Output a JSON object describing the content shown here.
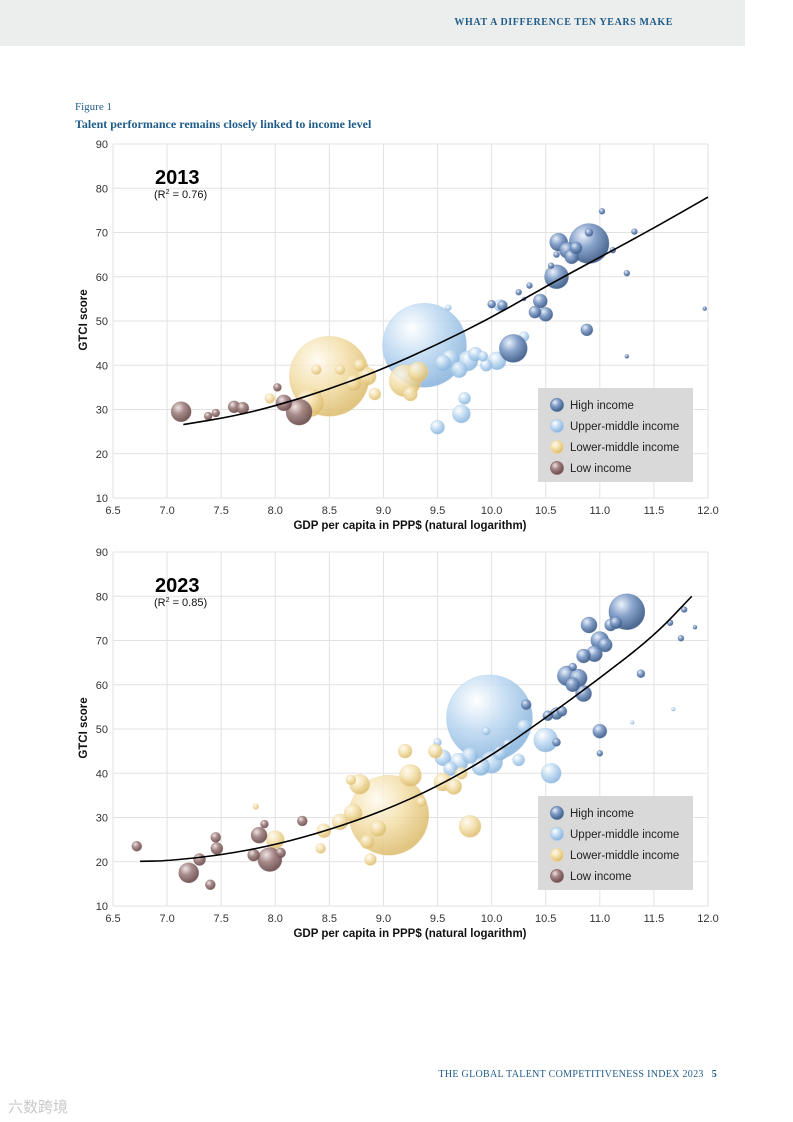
{
  "header": {
    "running_title": "WHAT A DIFFERENCE TEN YEARS MAKE"
  },
  "figure": {
    "label": "Figure 1",
    "title": "Talent performance remains closely linked to income level"
  },
  "footer": {
    "publication": "THE GLOBAL TALENT COMPETITIVENESS INDEX 2023",
    "page_number": "5"
  },
  "watermark": {
    "text": "六数跨境"
  },
  "colors": {
    "high": "#5b7aa8",
    "upper_middle": "#a9cbea",
    "lower_middle": "#efd8a0",
    "low": "#8d6a6a",
    "fit_line": "#000000",
    "grid": "#e2e2e2",
    "legend_bg": "#d9d9d9"
  },
  "chart_data": [
    {
      "type": "scatter",
      "subtype": "bubble",
      "title": "2013",
      "annotation": {
        "r2_prefix": "(R",
        "r2_sup": "2",
        "r2_suffix": " = 0.76)"
      },
      "xlabel": "GDP per capita in PPP$ (natural logarithm)",
      "ylabel": "GTCI score",
      "xlim": [
        6.5,
        12.0
      ],
      "ylim": [
        10,
        90
      ],
      "xticks": [
        "6.5",
        "7.0",
        "7.5",
        "8.0",
        "8.5",
        "9.0",
        "9.5",
        "10.0",
        "10.5",
        "11.0",
        "11.5",
        "12.0"
      ],
      "yticks": [
        "10",
        "20",
        "30",
        "40",
        "50",
        "60",
        "70",
        "80",
        "90"
      ],
      "legend": [
        "High income",
        "Upper-middle income",
        "Lower-middle income",
        "Low income"
      ],
      "legend_position": "bottom-right",
      "fit_curve": [
        [
          7.15,
          26.6
        ],
        [
          7.6,
          28.4
        ],
        [
          8.0,
          30.8
        ],
        [
          8.5,
          34.6
        ],
        [
          9.0,
          39.2
        ],
        [
          9.5,
          44.7
        ],
        [
          10.0,
          50.8
        ],
        [
          10.5,
          57.8
        ],
        [
          11.0,
          64.4
        ],
        [
          11.5,
          71.0
        ],
        [
          12.0,
          78.0
        ]
      ],
      "series": [
        {
          "name": "Low income",
          "group": "low",
          "points": [
            {
              "x": 7.13,
              "y": 29.5,
              "s": 10
            },
            {
              "x": 7.38,
              "y": 28.5,
              "s": 4
            },
            {
              "x": 7.45,
              "y": 29.2,
              "s": 4
            },
            {
              "x": 7.62,
              "y": 30.6,
              "s": 6
            },
            {
              "x": 7.7,
              "y": 30.3,
              "s": 6
            },
            {
              "x": 8.02,
              "y": 35.0,
              "s": 4
            },
            {
              "x": 8.08,
              "y": 31.5,
              "s": 8
            },
            {
              "x": 8.22,
              "y": 29.4,
              "s": 13
            }
          ]
        },
        {
          "name": "Lower-middle income",
          "group": "lower_middle",
          "points": [
            {
              "x": 8.5,
              "y": 37.5,
              "s": 40
            },
            {
              "x": 8.32,
              "y": 31.5,
              "s": 14
            },
            {
              "x": 8.72,
              "y": 36.0,
              "s": 8
            },
            {
              "x": 8.78,
              "y": 40.0,
              "s": 6
            },
            {
              "x": 8.85,
              "y": 37.5,
              "s": 9
            },
            {
              "x": 8.92,
              "y": 33.5,
              "s": 6
            },
            {
              "x": 9.2,
              "y": 36.5,
              "s": 16
            },
            {
              "x": 9.32,
              "y": 38.5,
              "s": 10
            },
            {
              "x": 9.25,
              "y": 33.5,
              "s": 7
            },
            {
              "x": 8.6,
              "y": 39.0,
              "s": 5
            },
            {
              "x": 7.95,
              "y": 32.5,
              "s": 5
            },
            {
              "x": 8.38,
              "y": 39.0,
              "s": 5
            }
          ]
        },
        {
          "name": "Upper-middle income",
          "group": "upper_middle",
          "points": [
            {
              "x": 9.38,
              "y": 44.5,
              "s": 42
            },
            {
              "x": 9.5,
              "y": 26.0,
              "s": 7
            },
            {
              "x": 9.72,
              "y": 29.0,
              "s": 9
            },
            {
              "x": 9.75,
              "y": 32.5,
              "s": 6
            },
            {
              "x": 9.55,
              "y": 40.5,
              "s": 8
            },
            {
              "x": 9.62,
              "y": 41.5,
              "s": 9
            },
            {
              "x": 9.7,
              "y": 39.0,
              "s": 8
            },
            {
              "x": 9.78,
              "y": 41.0,
              "s": 10
            },
            {
              "x": 9.85,
              "y": 42.5,
              "s": 7
            },
            {
              "x": 9.95,
              "y": 40.0,
              "s": 6
            },
            {
              "x": 10.05,
              "y": 41.0,
              "s": 9
            },
            {
              "x": 9.92,
              "y": 42.0,
              "s": 5
            },
            {
              "x": 10.08,
              "y": 53.5,
              "s": 6
            },
            {
              "x": 9.6,
              "y": 53.0,
              "s": 3
            },
            {
              "x": 10.62,
              "y": 31.5,
              "s": 7
            },
            {
              "x": 10.3,
              "y": 46.5,
              "s": 5
            }
          ]
        },
        {
          "name": "High income",
          "group": "high",
          "points": [
            {
              "x": 10.9,
              "y": 67.5,
              "s": 20
            },
            {
              "x": 10.62,
              "y": 67.8,
              "s": 9
            },
            {
              "x": 10.7,
              "y": 66.0,
              "s": 8
            },
            {
              "x": 10.74,
              "y": 64.5,
              "s": 7
            },
            {
              "x": 10.78,
              "y": 66.5,
              "s": 6
            },
            {
              "x": 10.6,
              "y": 60.0,
              "s": 12
            },
            {
              "x": 10.2,
              "y": 43.8,
              "s": 14
            },
            {
              "x": 10.45,
              "y": 54.5,
              "s": 7
            },
            {
              "x": 10.5,
              "y": 51.5,
              "s": 7
            },
            {
              "x": 10.4,
              "y": 52.0,
              "s": 6
            },
            {
              "x": 10.1,
              "y": 53.5,
              "s": 5
            },
            {
              "x": 10.0,
              "y": 53.8,
              "s": 4
            },
            {
              "x": 10.88,
              "y": 48.0,
              "s": 6
            },
            {
              "x": 11.02,
              "y": 74.8,
              "s": 3
            },
            {
              "x": 11.32,
              "y": 70.2,
              "s": 3
            },
            {
              "x": 11.25,
              "y": 60.8,
              "s": 3
            },
            {
              "x": 11.25,
              "y": 42.0,
              "s": 2
            },
            {
              "x": 11.97,
              "y": 52.8,
              "s": 2
            },
            {
              "x": 11.12,
              "y": 66.0,
              "s": 3
            },
            {
              "x": 10.6,
              "y": 65.0,
              "s": 3
            },
            {
              "x": 10.35,
              "y": 58.0,
              "s": 3
            },
            {
              "x": 10.9,
              "y": 70.0,
              "s": 4
            },
            {
              "x": 10.55,
              "y": 62.5,
              "s": 3
            },
            {
              "x": 10.25,
              "y": 56.5,
              "s": 3
            },
            {
              "x": 10.3,
              "y": 55.0,
              "s": 2
            }
          ]
        }
      ]
    },
    {
      "type": "scatter",
      "subtype": "bubble",
      "title": "2023",
      "annotation": {
        "r2_prefix": "(R",
        "r2_sup": "2",
        "r2_suffix": " = 0.85)"
      },
      "xlabel": "GDP per capita in PPP$ (natural logarithm)",
      "ylabel": "GTCI score",
      "xlim": [
        6.5,
        12.0
      ],
      "ylim": [
        10,
        90
      ],
      "xticks": [
        "6.5",
        "7.0",
        "7.5",
        "8.0",
        "8.5",
        "9.0",
        "9.5",
        "10.0",
        "10.5",
        "11.0",
        "11.5",
        "12.0"
      ],
      "yticks": [
        "10",
        "20",
        "30",
        "40",
        "50",
        "60",
        "70",
        "80",
        "90"
      ],
      "legend": [
        "High income",
        "Upper-middle income",
        "Lower-middle income",
        "Low income"
      ],
      "legend_position": "bottom-right",
      "fit_curve": [
        [
          6.75,
          20.1
        ],
        [
          7.0,
          20.2
        ],
        [
          7.5,
          21.5
        ],
        [
          8.0,
          23.8
        ],
        [
          8.5,
          27.2
        ],
        [
          9.0,
          31.5
        ],
        [
          9.5,
          37.0
        ],
        [
          10.0,
          44.0
        ],
        [
          10.5,
          52.5
        ],
        [
          11.0,
          61.5
        ],
        [
          11.5,
          71.0
        ],
        [
          11.85,
          80.0
        ]
      ],
      "series": [
        {
          "name": "Low income",
          "group": "low",
          "points": [
            {
              "x": 6.72,
              "y": 23.5,
              "s": 5
            },
            {
              "x": 7.2,
              "y": 17.5,
              "s": 10
            },
            {
              "x": 7.3,
              "y": 20.5,
              "s": 6
            },
            {
              "x": 7.4,
              "y": 14.8,
              "s": 5
            },
            {
              "x": 7.45,
              "y": 25.5,
              "s": 5
            },
            {
              "x": 7.46,
              "y": 23.0,
              "s": 6
            },
            {
              "x": 7.8,
              "y": 21.5,
              "s": 6
            },
            {
              "x": 7.85,
              "y": 26.0,
              "s": 8
            },
            {
              "x": 7.9,
              "y": 28.5,
              "s": 4
            },
            {
              "x": 7.95,
              "y": 20.5,
              "s": 12
            },
            {
              "x": 8.05,
              "y": 22.0,
              "s": 5
            },
            {
              "x": 8.25,
              "y": 29.2,
              "s": 5
            }
          ]
        },
        {
          "name": "Lower-middle income",
          "group": "lower_middle",
          "points": [
            {
              "x": 9.05,
              "y": 30.5,
              "s": 40
            },
            {
              "x": 8.0,
              "y": 25.0,
              "s": 9
            },
            {
              "x": 7.82,
              "y": 32.5,
              "s": 3
            },
            {
              "x": 8.45,
              "y": 27.0,
              "s": 7
            },
            {
              "x": 8.6,
              "y": 29.0,
              "s": 8
            },
            {
              "x": 8.72,
              "y": 31.0,
              "s": 9
            },
            {
              "x": 8.78,
              "y": 37.5,
              "s": 10
            },
            {
              "x": 8.85,
              "y": 24.5,
              "s": 7
            },
            {
              "x": 8.95,
              "y": 27.5,
              "s": 8
            },
            {
              "x": 8.88,
              "y": 20.5,
              "s": 6
            },
            {
              "x": 9.2,
              "y": 45.0,
              "s": 7
            },
            {
              "x": 9.25,
              "y": 39.5,
              "s": 11
            },
            {
              "x": 9.48,
              "y": 45.0,
              "s": 7
            },
            {
              "x": 9.55,
              "y": 38.0,
              "s": 9
            },
            {
              "x": 9.65,
              "y": 37.0,
              "s": 8
            },
            {
              "x": 9.8,
              "y": 28.0,
              "s": 11
            },
            {
              "x": 9.72,
              "y": 40.0,
              "s": 6
            },
            {
              "x": 8.42,
              "y": 23.0,
              "s": 5
            },
            {
              "x": 9.35,
              "y": 33.5,
              "s": 5
            },
            {
              "x": 8.7,
              "y": 38.5,
              "s": 5
            }
          ]
        },
        {
          "name": "Upper-middle income",
          "group": "upper_middle",
          "points": [
            {
              "x": 9.98,
              "y": 52.5,
              "s": 43
            },
            {
              "x": 9.55,
              "y": 43.5,
              "s": 8
            },
            {
              "x": 9.62,
              "y": 41.0,
              "s": 7
            },
            {
              "x": 9.7,
              "y": 42.5,
              "s": 9
            },
            {
              "x": 9.8,
              "y": 44.0,
              "s": 8
            },
            {
              "x": 9.9,
              "y": 41.5,
              "s": 9
            },
            {
              "x": 10.0,
              "y": 42.5,
              "s": 11
            },
            {
              "x": 10.08,
              "y": 44.5,
              "s": 7
            },
            {
              "x": 10.3,
              "y": 50.5,
              "s": 7
            },
            {
              "x": 10.5,
              "y": 47.5,
              "s": 12
            },
            {
              "x": 10.55,
              "y": 40.0,
              "s": 10
            },
            {
              "x": 9.5,
              "y": 47.0,
              "s": 4
            },
            {
              "x": 10.25,
              "y": 43.0,
              "s": 6
            },
            {
              "x": 9.95,
              "y": 49.5,
              "s": 4
            },
            {
              "x": 11.68,
              "y": 54.5,
              "s": 2
            },
            {
              "x": 11.3,
              "y": 51.5,
              "s": 2
            },
            {
              "x": 10.15,
              "y": 46.5,
              "s": 5
            }
          ]
        },
        {
          "name": "High income",
          "group": "high",
          "points": [
            {
              "x": 11.25,
              "y": 76.5,
              "s": 18
            },
            {
              "x": 10.9,
              "y": 73.5,
              "s": 8
            },
            {
              "x": 11.0,
              "y": 70.0,
              "s": 9
            },
            {
              "x": 11.05,
              "y": 69.0,
              "s": 7
            },
            {
              "x": 11.1,
              "y": 73.5,
              "s": 6
            },
            {
              "x": 11.15,
              "y": 74.0,
              "s": 6
            },
            {
              "x": 10.95,
              "y": 67.0,
              "s": 8
            },
            {
              "x": 10.85,
              "y": 66.5,
              "s": 7
            },
            {
              "x": 10.7,
              "y": 62.0,
              "s": 10
            },
            {
              "x": 10.8,
              "y": 61.5,
              "s": 9
            },
            {
              "x": 10.75,
              "y": 60.0,
              "s": 7
            },
            {
              "x": 10.85,
              "y": 58.0,
              "s": 8
            },
            {
              "x": 10.6,
              "y": 53.5,
              "s": 6
            },
            {
              "x": 10.65,
              "y": 54.0,
              "s": 5
            },
            {
              "x": 10.52,
              "y": 53.0,
              "s": 5
            },
            {
              "x": 10.32,
              "y": 55.5,
              "s": 5
            },
            {
              "x": 11.0,
              "y": 49.5,
              "s": 7
            },
            {
              "x": 11.0,
              "y": 44.5,
              "s": 3
            },
            {
              "x": 11.38,
              "y": 62.5,
              "s": 4
            },
            {
              "x": 11.75,
              "y": 70.5,
              "s": 3
            },
            {
              "x": 11.78,
              "y": 77.0,
              "s": 3
            },
            {
              "x": 11.65,
              "y": 74.0,
              "s": 3
            },
            {
              "x": 11.88,
              "y": 73.0,
              "s": 2
            },
            {
              "x": 10.6,
              "y": 47.0,
              "s": 4
            },
            {
              "x": 10.75,
              "y": 64.0,
              "s": 4
            }
          ]
        }
      ]
    }
  ]
}
